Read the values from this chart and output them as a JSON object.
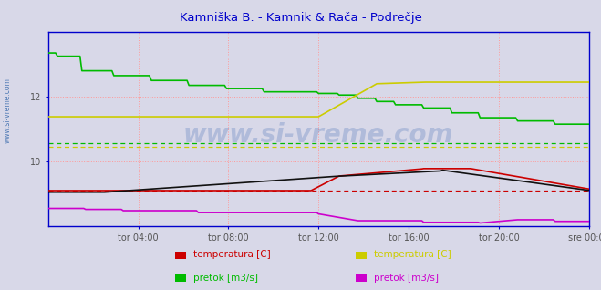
{
  "title": "Kamniška B. - Kamnik & Rača - Podrečje",
  "title_color": "#0000cc",
  "bg_color": "#d8d8e8",
  "plot_bg_color": "#d8d8e8",
  "border_color": "#0000cc",
  "watermark": "www.si-vreme.com",
  "watermark_color": "#2255aa",
  "xlim": [
    0,
    288
  ],
  "ylim": [
    8.0,
    14.0
  ],
  "yticks": [
    10,
    12
  ],
  "xtick_labels": [
    "tor 04:00",
    "tor 08:00",
    "tor 12:00",
    "tor 16:00",
    "tor 20:00",
    "sre 00:00"
  ],
  "xtick_positions": [
    48,
    96,
    144,
    192,
    240,
    288
  ],
  "tick_color": "#555555",
  "ref_line_green_y": 10.55,
  "ref_line_yellow_y": 10.45,
  "ref_line_red_y": 9.1,
  "sidebar_color": "#3366aa",
  "legend_items": [
    {
      "label": "temperatura [C]",
      "color": "#cc0000"
    },
    {
      "label": "pretok [m3/s]",
      "color": "#00bb00"
    },
    {
      "label": "temperatura [C]",
      "color": "#cccc00"
    },
    {
      "label": "pretok [m3/s]",
      "color": "#cc00cc"
    }
  ]
}
